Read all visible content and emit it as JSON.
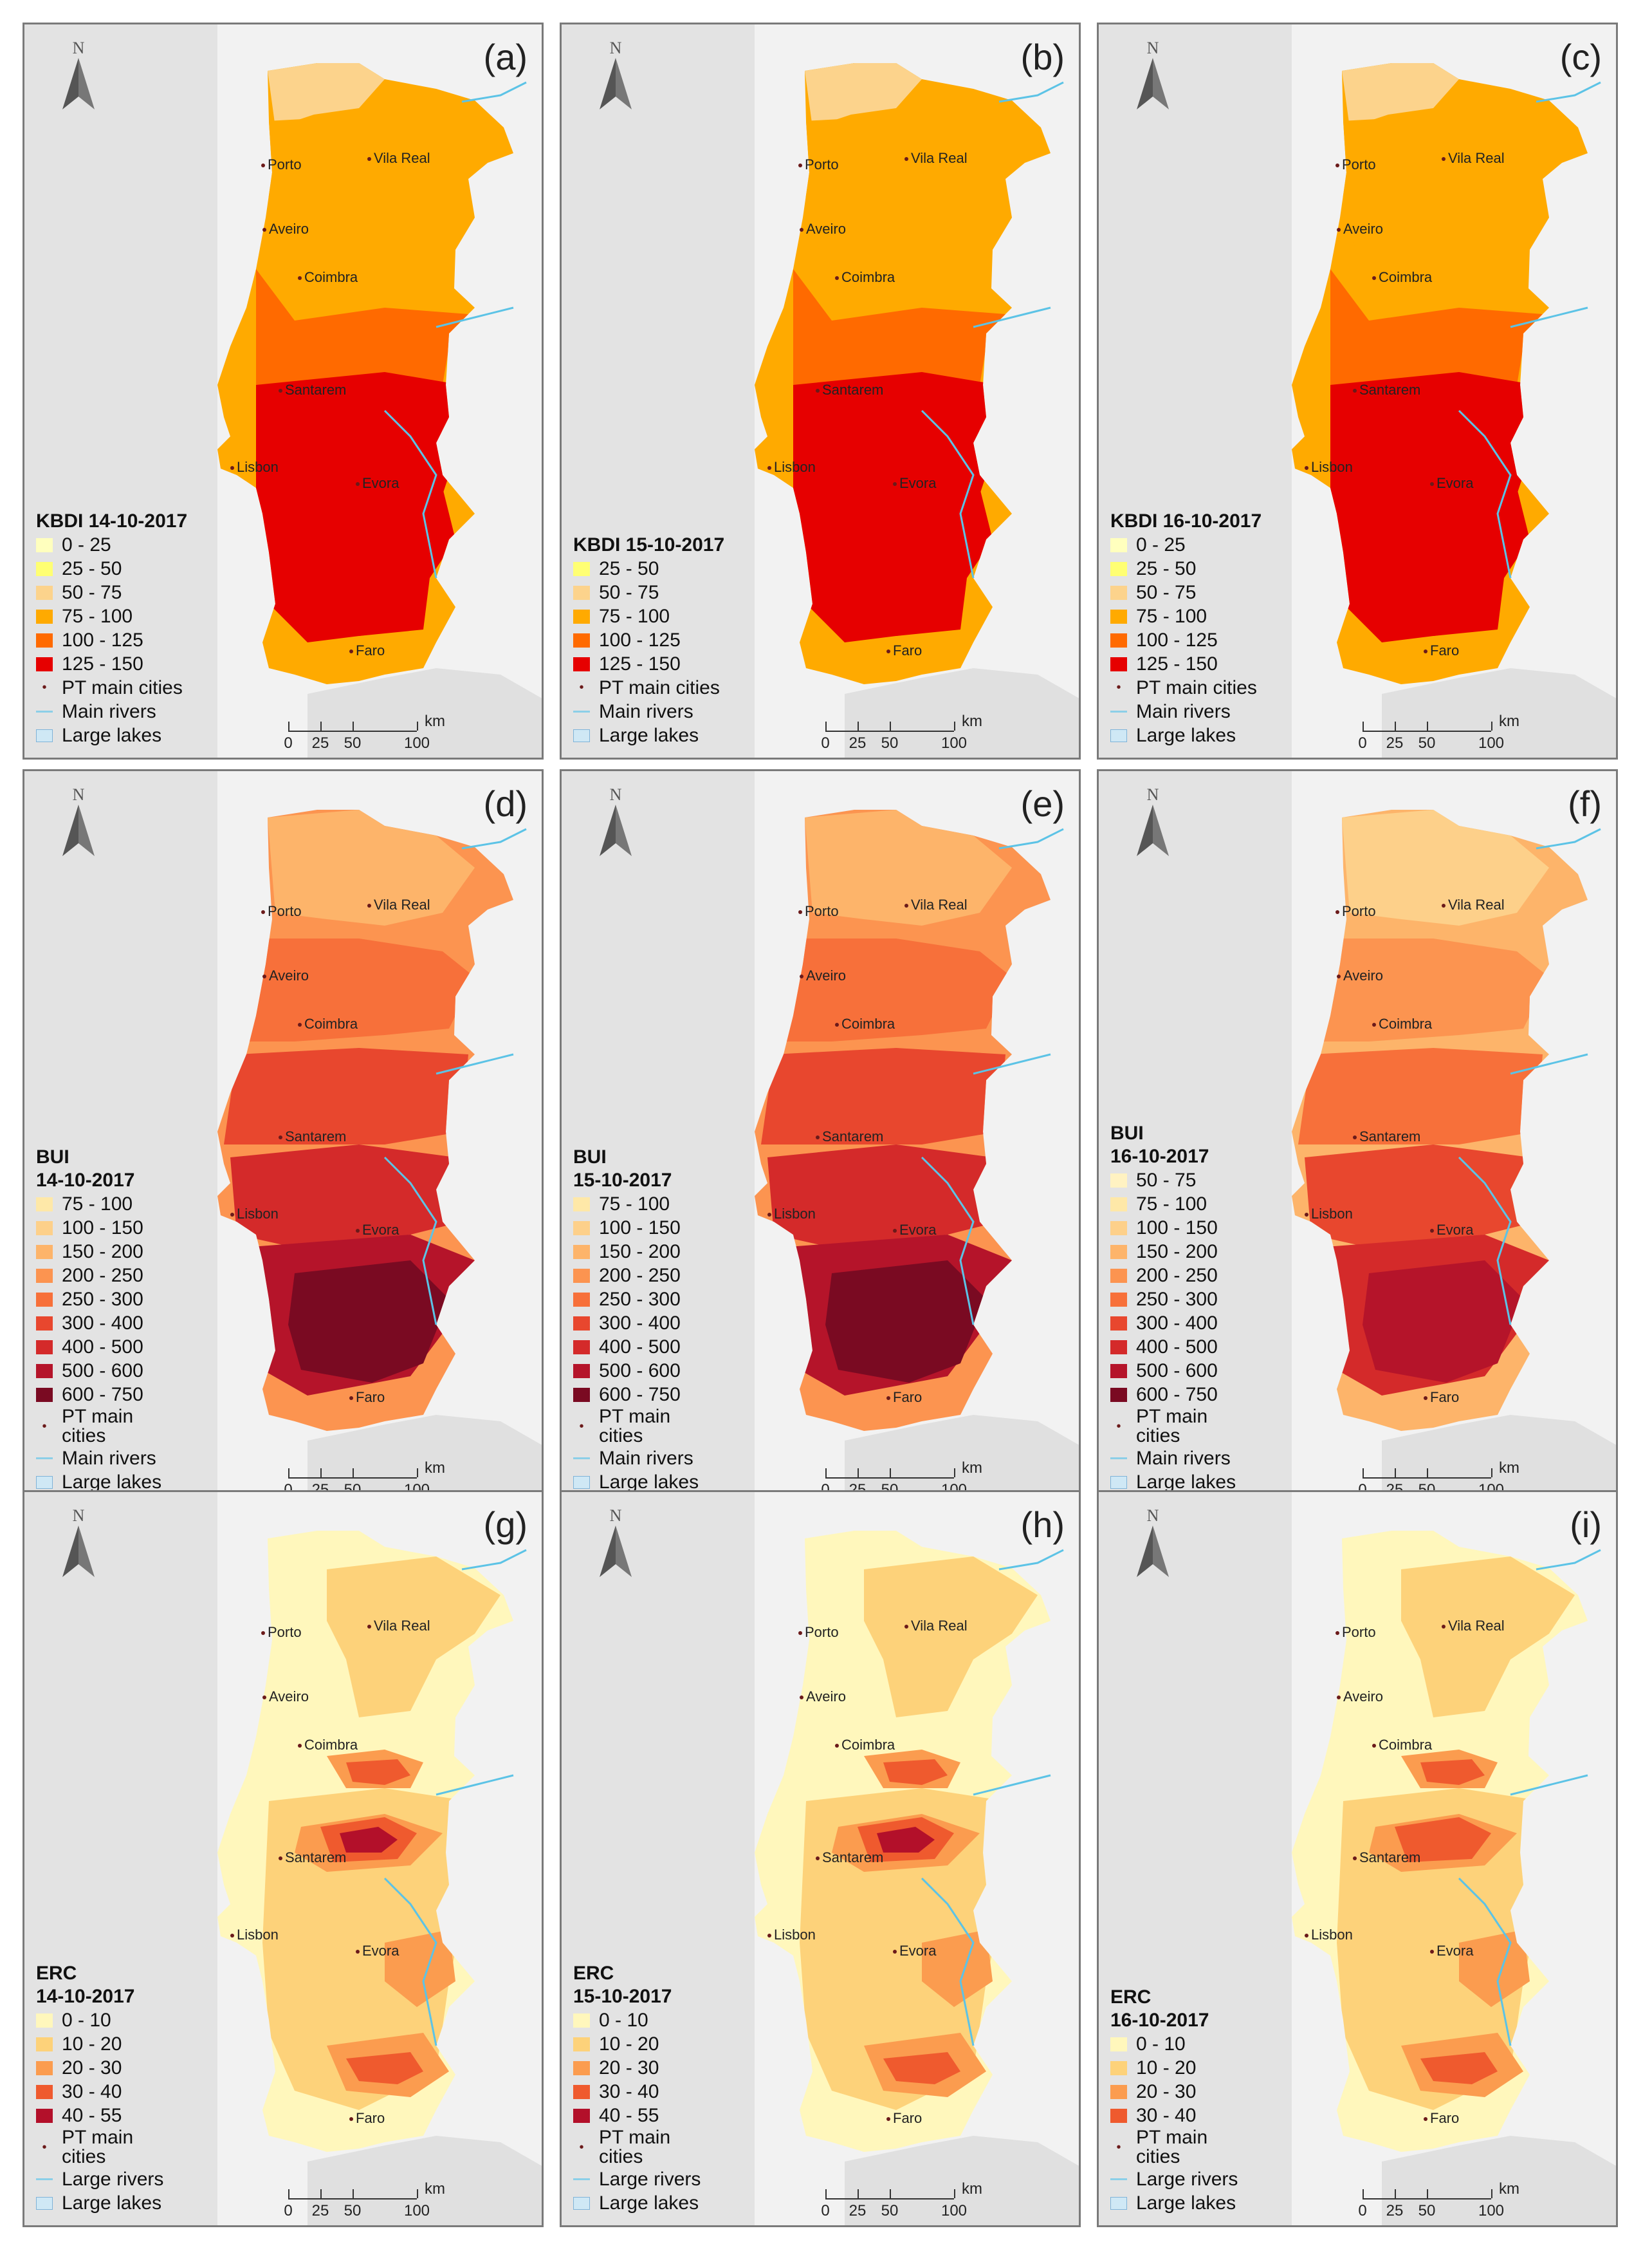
{
  "north_label": "N",
  "scale": {
    "ticks": [
      "0",
      "25",
      "50",
      "100"
    ],
    "unit": "km"
  },
  "cities": [
    "Porto",
    "Vila Real",
    "Aveiro",
    "Coimbra",
    "Santarem",
    "Lisbon",
    "Evora",
    "Faro"
  ],
  "panels": [
    {
      "letter": "(a)",
      "title": "KBDI 14-10-2017",
      "classes": [
        {
          "label": "0 - 25",
          "color": "#ffffbe"
        },
        {
          "label": "25 - 50",
          "color": "#ffff73"
        },
        {
          "label": "50 - 75",
          "color": "#fcd38c"
        },
        {
          "label": "75 - 100",
          "color": "#ffaa00"
        },
        {
          "label": "100 - 125",
          "color": "#ff6a00"
        },
        {
          "label": "125 - 150",
          "color": "#e60000"
        }
      ],
      "extras": [
        "PT main cities",
        "Main rivers",
        "Large lakes"
      ]
    },
    {
      "letter": "(b)",
      "title": "KBDI 15-10-2017",
      "classes": [
        {
          "label": "25 - 50",
          "color": "#ffff73"
        },
        {
          "label": "50 - 75",
          "color": "#fcd38c"
        },
        {
          "label": "75 - 100",
          "color": "#ffaa00"
        },
        {
          "label": "100 - 125",
          "color": "#ff6a00"
        },
        {
          "label": "125 - 150",
          "color": "#e60000"
        }
      ],
      "extras": [
        "PT main cities",
        "Main rivers",
        "Large lakes"
      ]
    },
    {
      "letter": "(c)",
      "title": "KBDI 16-10-2017",
      "classes": [
        {
          "label": "0 - 25",
          "color": "#ffffbe"
        },
        {
          "label": "25 - 50",
          "color": "#ffff73"
        },
        {
          "label": "50 - 75",
          "color": "#fcd38c"
        },
        {
          "label": "75 - 100",
          "color": "#ffaa00"
        },
        {
          "label": "100 - 125",
          "color": "#ff6a00"
        },
        {
          "label": "125 - 150",
          "color": "#e60000"
        }
      ],
      "extras": [
        "PT main cities",
        "Main rivers",
        "Large lakes"
      ]
    },
    {
      "letter": "(d)",
      "title": "BUI\n14-10-2017",
      "classes": [
        {
          "label": "75 - 100",
          "color": "#fee8a8"
        },
        {
          "label": "100 - 150",
          "color": "#fdd08a"
        },
        {
          "label": "150 - 200",
          "color": "#fdb46a"
        },
        {
          "label": "200 - 250",
          "color": "#fc9450"
        },
        {
          "label": "250 - 300",
          "color": "#f7703a"
        },
        {
          "label": "300 - 400",
          "color": "#e8472e"
        },
        {
          "label": "400 - 500",
          "color": "#d42a2a"
        },
        {
          "label": "500 - 600",
          "color": "#b5142a"
        },
        {
          "label": "600 - 750",
          "color": "#7a0a22"
        }
      ],
      "extras": [
        "PT main\ncities",
        "Main rivers",
        "Large lakes"
      ]
    },
    {
      "letter": "(e)",
      "title": "BUI\n15-10-2017",
      "classes": [
        {
          "label": "75 - 100",
          "color": "#fee8a8"
        },
        {
          "label": "100 - 150",
          "color": "#fdd08a"
        },
        {
          "label": "150 - 200",
          "color": "#fdb46a"
        },
        {
          "label": "200 - 250",
          "color": "#fc9450"
        },
        {
          "label": "250 - 300",
          "color": "#f7703a"
        },
        {
          "label": "300 - 400",
          "color": "#e8472e"
        },
        {
          "label": "400 - 500",
          "color": "#d42a2a"
        },
        {
          "label": "500 - 600",
          "color": "#b5142a"
        },
        {
          "label": "600 - 750",
          "color": "#7a0a22"
        }
      ],
      "extras": [
        "PT main\ncities",
        "Main rivers",
        "Large lakes"
      ]
    },
    {
      "letter": "(f)",
      "title": "BUI\n16-10-2017",
      "classes": [
        {
          "label": "50 - 75",
          "color": "#fff2c2"
        },
        {
          "label": "75 - 100",
          "color": "#fee8a8"
        },
        {
          "label": "100 - 150",
          "color": "#fdd08a"
        },
        {
          "label": "150 - 200",
          "color": "#fdb46a"
        },
        {
          "label": "200 - 250",
          "color": "#fc9450"
        },
        {
          "label": "250 - 300",
          "color": "#f7703a"
        },
        {
          "label": "300 - 400",
          "color": "#e8472e"
        },
        {
          "label": "400 - 500",
          "color": "#d42a2a"
        },
        {
          "label": "500 - 600",
          "color": "#b5142a"
        },
        {
          "label": "600 - 750",
          "color": "#7a0a22"
        }
      ],
      "extras": [
        "PT main\ncities",
        "Main rivers",
        "Large lakes"
      ]
    },
    {
      "letter": "(g)",
      "title": "ERC\n14-10-2017",
      "classes": [
        {
          "label": "0 - 10",
          "color": "#fff7bc"
        },
        {
          "label": "10 - 20",
          "color": "#fdd27a"
        },
        {
          "label": "20 - 30",
          "color": "#fb9c4f"
        },
        {
          "label": "30 - 40",
          "color": "#ef5a2e"
        },
        {
          "label": "40 - 55",
          "color": "#b3102a"
        }
      ],
      "extras": [
        "PT main\ncities",
        "Large rivers",
        "Large lakes"
      ]
    },
    {
      "letter": "(h)",
      "title": "ERC\n15-10-2017",
      "classes": [
        {
          "label": "0 - 10",
          "color": "#fff7bc"
        },
        {
          "label": "10 - 20",
          "color": "#fdd27a"
        },
        {
          "label": "20 - 30",
          "color": "#fb9c4f"
        },
        {
          "label": "30 - 40",
          "color": "#ef5a2e"
        },
        {
          "label": "40 - 55",
          "color": "#b3102a"
        }
      ],
      "extras": [
        "PT main\ncities",
        "Large rivers",
        "Large lakes"
      ]
    },
    {
      "letter": "(i)",
      "title": "ERC\n16-10-2017",
      "classes": [
        {
          "label": "0 - 10",
          "color": "#fff7bc"
        },
        {
          "label": "10 - 20",
          "color": "#fdd27a"
        },
        {
          "label": "20 - 30",
          "color": "#fb9c4f"
        },
        {
          "label": "30 - 40",
          "color": "#ef5a2e"
        }
      ],
      "extras": [
        "PT main\ncities",
        "Large rivers",
        "Large lakes"
      ]
    }
  ]
}
